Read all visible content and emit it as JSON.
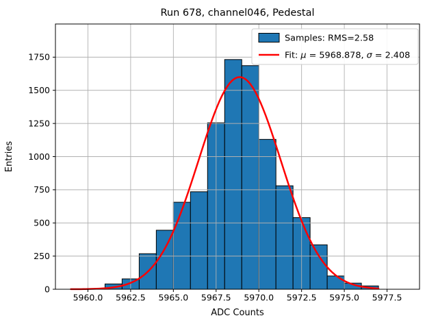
{
  "chart_data": {
    "type": "bar",
    "title": "Run 678, channel046, Pedestal",
    "xlabel": "ADC Counts",
    "ylabel": "Entries",
    "xlim": [
      5958.1,
      5979.4
    ],
    "ylim": [
      0,
      2000
    ],
    "grid": true,
    "grid_color": "#b0b0b0",
    "bin_edges": [
      5961,
      5962,
      5963,
      5964,
      5965,
      5966,
      5967,
      5968,
      5969,
      5970,
      5971,
      5972,
      5973,
      5974,
      5975,
      5976,
      5977
    ],
    "counts": [
      40,
      78,
      268,
      445,
      656,
      735,
      1255,
      1732,
      1686,
      1130,
      780,
      540,
      335,
      100,
      46,
      25
    ],
    "bar_color": "#1f77b4",
    "bar_edge_color": "#000000",
    "samples": {
      "rms": 2.58
    },
    "fit": {
      "mu": 5968.878,
      "sigma": 2.408,
      "amplitude": 1600,
      "color": "#ff0000",
      "x_start": 5959.0,
      "x_end": 5977.05
    },
    "xticks": [
      5960.0,
      5962.5,
      5965.0,
      5967.5,
      5970.0,
      5972.5,
      5975.0,
      5977.5
    ],
    "xtick_labels": [
      "5960.0",
      "5962.5",
      "5965.0",
      "5967.5",
      "5970.0",
      "5972.5",
      "5975.0",
      "5977.5"
    ],
    "yticks": [
      0,
      250,
      500,
      750,
      1000,
      1250,
      1500,
      1750
    ],
    "ytick_labels": [
      "0",
      "250",
      "500",
      "750",
      "1000",
      "1250",
      "1500",
      "1750"
    ],
    "legend": {
      "position": "upper right",
      "entries": [
        {
          "key": "samples",
          "swatch": "patch",
          "color": "#1f77b4",
          "label": "Samples: RMS=2.58"
        },
        {
          "key": "fit",
          "swatch": "line",
          "color": "#ff0000",
          "label": "Fit: μ = 5968.878, σ = 2.408"
        }
      ]
    }
  }
}
